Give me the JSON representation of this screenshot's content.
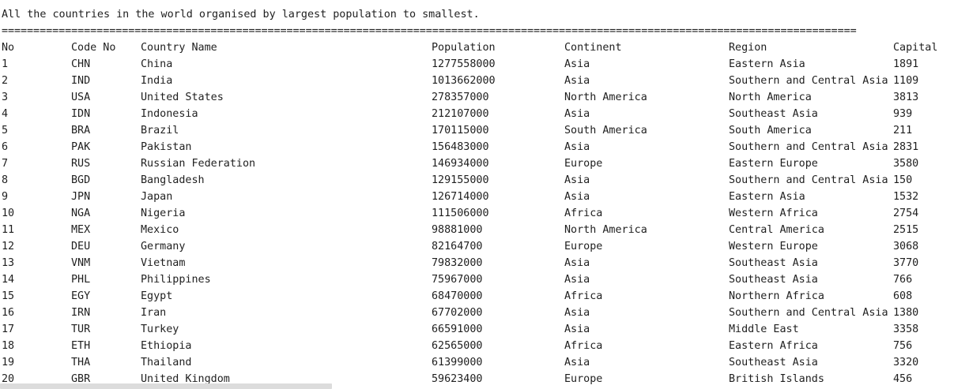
{
  "console": {
    "top_rule": "--------------------------------------------------------------------------------------------------------------------------------------------------",
    "title": "All the countries in the world organised by largest population to smallest.",
    "separator": "===================================================================================================================================================="
  },
  "table": {
    "headers": {
      "no": "No",
      "code": "Code No",
      "name": "Country Name",
      "population": "Population",
      "continent": "Continent",
      "region": "Region",
      "capital": "Capital"
    },
    "rows": [
      {
        "no": "1",
        "code": "CHN",
        "name": "China",
        "population": "1277558000",
        "continent": "Asia",
        "region": "Eastern Asia",
        "capital": "1891"
      },
      {
        "no": "2",
        "code": "IND",
        "name": "India",
        "population": "1013662000",
        "continent": "Asia",
        "region": "Southern and Central Asia",
        "capital": "1109"
      },
      {
        "no": "3",
        "code": "USA",
        "name": "United States",
        "population": "278357000",
        "continent": "North America",
        "region": "North America",
        "capital": "3813"
      },
      {
        "no": "4",
        "code": "IDN",
        "name": "Indonesia",
        "population": "212107000",
        "continent": "Asia",
        "region": "Southeast Asia",
        "capital": "939"
      },
      {
        "no": "5",
        "code": "BRA",
        "name": "Brazil",
        "population": "170115000",
        "continent": "South America",
        "region": "South America",
        "capital": "211"
      },
      {
        "no": "6",
        "code": "PAK",
        "name": "Pakistan",
        "population": "156483000",
        "continent": "Asia",
        "region": "Southern and Central Asia",
        "capital": "2831"
      },
      {
        "no": "7",
        "code": "RUS",
        "name": "Russian Federation",
        "population": "146934000",
        "continent": "Europe",
        "region": "Eastern Europe",
        "capital": "3580"
      },
      {
        "no": "8",
        "code": "BGD",
        "name": "Bangladesh",
        "population": "129155000",
        "continent": "Asia",
        "region": "Southern and Central Asia",
        "capital": "150"
      },
      {
        "no": "9",
        "code": "JPN",
        "name": "Japan",
        "population": "126714000",
        "continent": "Asia",
        "region": "Eastern Asia",
        "capital": "1532"
      },
      {
        "no": "10",
        "code": "NGA",
        "name": "Nigeria",
        "population": "111506000",
        "continent": "Africa",
        "region": "Western Africa",
        "capital": "2754"
      },
      {
        "no": "11",
        "code": "MEX",
        "name": "Mexico",
        "population": "98881000",
        "continent": "North America",
        "region": "Central America",
        "capital": "2515"
      },
      {
        "no": "12",
        "code": "DEU",
        "name": "Germany",
        "population": "82164700",
        "continent": "Europe",
        "region": "Western Europe",
        "capital": "3068"
      },
      {
        "no": "13",
        "code": "VNM",
        "name": "Vietnam",
        "population": "79832000",
        "continent": "Asia",
        "region": "Southeast Asia",
        "capital": "3770"
      },
      {
        "no": "14",
        "code": "PHL",
        "name": "Philippines",
        "population": "75967000",
        "continent": "Asia",
        "region": "Southeast Asia",
        "capital": "766"
      },
      {
        "no": "15",
        "code": "EGY",
        "name": "Egypt",
        "population": "68470000",
        "continent": "Africa",
        "region": "Northern Africa",
        "capital": "608"
      },
      {
        "no": "16",
        "code": "IRN",
        "name": "Iran",
        "population": "67702000",
        "continent": "Asia",
        "region": "Southern and Central Asia",
        "capital": "1380"
      },
      {
        "no": "17",
        "code": "TUR",
        "name": "Turkey",
        "population": "66591000",
        "continent": "Asia",
        "region": "Middle East",
        "capital": "3358"
      },
      {
        "no": "18",
        "code": "ETH",
        "name": "Ethiopia",
        "population": "62565000",
        "continent": "Africa",
        "region": "Eastern Africa",
        "capital": "756"
      },
      {
        "no": "19",
        "code": "THA",
        "name": "Thailand",
        "population": "61399000",
        "continent": "Asia",
        "region": "Southeast Asia",
        "capital": "3320"
      },
      {
        "no": "20",
        "code": "GBR",
        "name": "United Kingdom",
        "population": "59623400",
        "continent": "Europe",
        "region": "British Islands",
        "capital": "456"
      }
    ]
  }
}
